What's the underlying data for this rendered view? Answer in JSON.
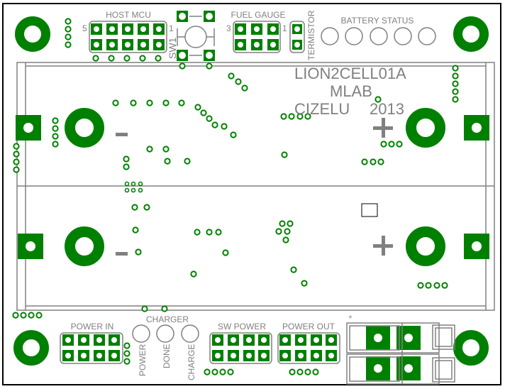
{
  "board": {
    "title": "LION2CELL01A",
    "brand": "MLAB",
    "author": "CIZELU",
    "year": "2013"
  },
  "colors": {
    "copper": "#008000",
    "silkscreen": "#808080",
    "board_edge": "#000000"
  },
  "labels": {
    "host_mcu": "HOST MCU",
    "host_mcu_pin_left": "5",
    "host_mcu_pin_right": "1",
    "sw1": "SW1",
    "fuel_gauge": "FUEL GAUGE",
    "fuel_gauge_pin_left": "3",
    "fuel_gauge_pin_right": "1",
    "termistor": "TERMISTOR",
    "battery_status": "BATTERY STATUS",
    "power_in": "POWER IN",
    "charger": "CHARGER",
    "led_power": "POWER",
    "led_done": "DONE",
    "led_charge": "CHARGE",
    "sw_power": "SW POWER",
    "power_out": "POWER OUT",
    "plus_small": "+"
  },
  "icons": {
    "minus": "minus-sign",
    "plus": "plus-sign",
    "pad": "square-pad",
    "via": "via-ring",
    "mount": "mounting-hole"
  }
}
